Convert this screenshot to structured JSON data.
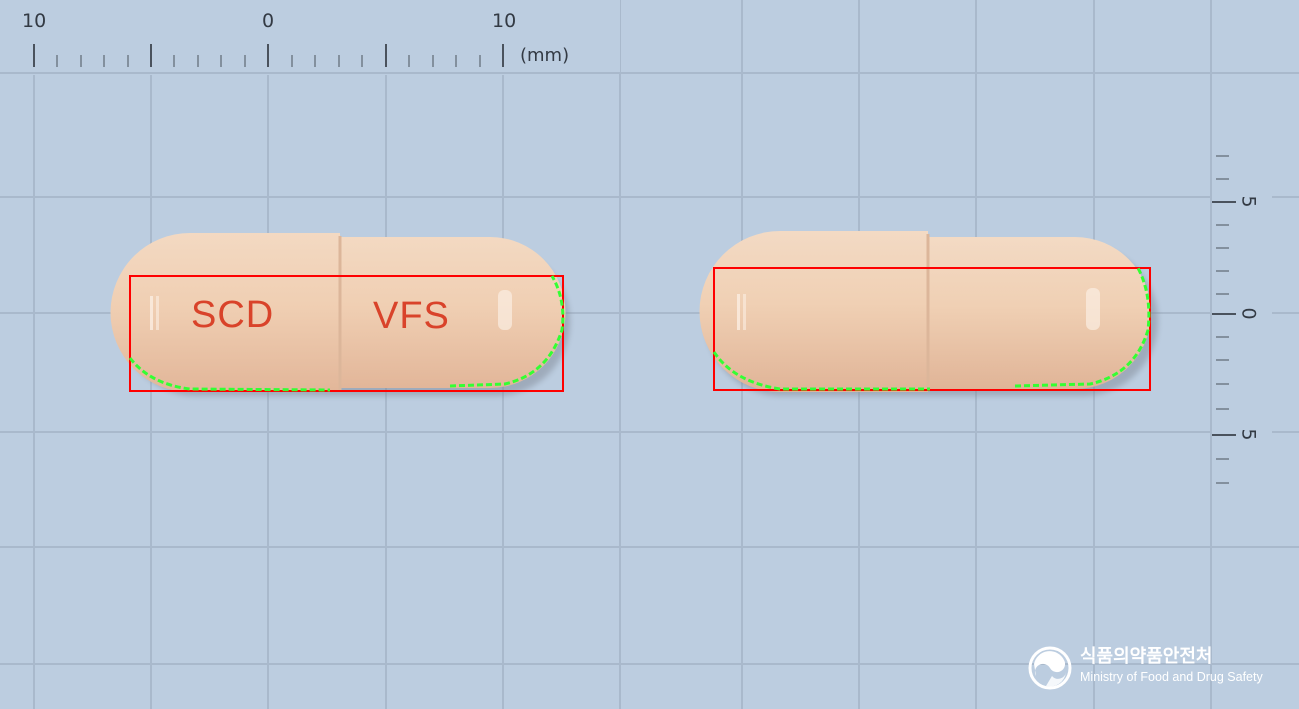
{
  "ruler_horizontal": {
    "labels": [
      "10",
      "0",
      "10"
    ],
    "unit": "(mm)"
  },
  "ruler_vertical": {
    "labels": [
      "5",
      "0",
      "5"
    ]
  },
  "capsule_front": {
    "imprint_left": "SCD",
    "imprint_right": "VFS",
    "body_color": "#f0cfb3",
    "imprint_color": "#d9432a"
  },
  "capsule_back": {
    "body_color": "#f0cfb3"
  },
  "detection_box_color": "#ff0000",
  "contour_color": "#33ff33",
  "logo": {
    "korean": "식품의약품안전처",
    "english": "Ministry of Food and Drug Safety"
  }
}
